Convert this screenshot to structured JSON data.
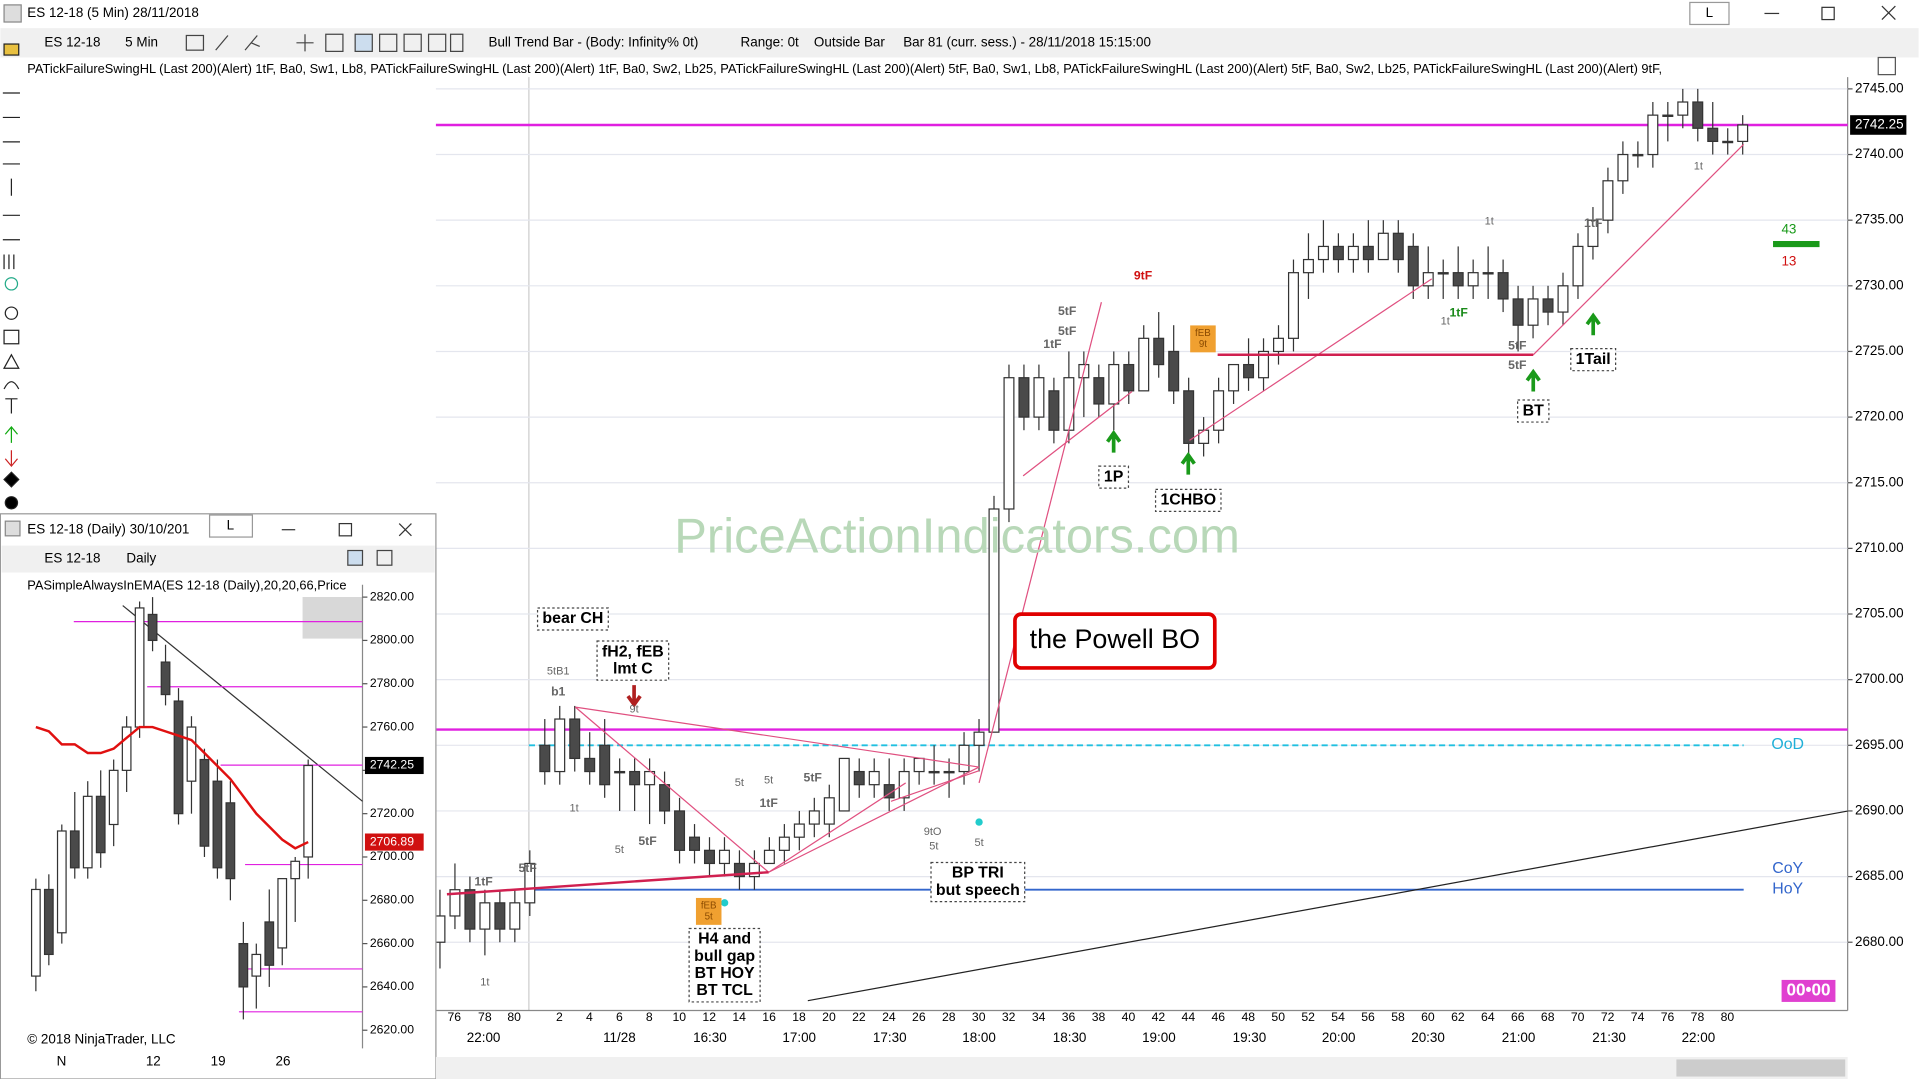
{
  "window": {
    "title": "ES 12-18 (5 Min)  28/11/2018",
    "mode": "L"
  },
  "toolbar": {
    "instrument": "ES 12-18",
    "interval": "5 Min",
    "status": "Bull Trend Bar - (Body: Infinity%  0t)",
    "range": "Range: 0t",
    "bar_type": "Outside Bar",
    "bar_info": "Bar 81 (curr. sess.) - 28/11/2018 15:15:00"
  },
  "indicator_label": "PATickFailureSwingHL (Last 200)(Alert) 1tF,  Ba0,  Sw1,  Lb8,  PATickFailureSwingHL (Last 200)(Alert) 1tF,  Ba0,  Sw2,  Lb25,  PATickFailureSwingHL (Last 200)(Alert) 5tF,  Ba0,  Sw1,  Lb8,  PATickFailureSwingHL (Last 200)(Alert) 5tF,  Ba0,  Sw2,  Lb25,  PATickFailureSwingHL (Last 200)(Alert) 9tF,",
  "chart_data": {
    "type": "candlestick",
    "ylim": [
      2674.8,
      2745.9
    ],
    "yticks": [
      {
        "value": 2745,
        "label": "2745.00"
      },
      {
        "value": 2740,
        "label": "2740.00"
      },
      {
        "value": 2735,
        "label": "2735.00"
      },
      {
        "value": 2730,
        "label": "2730.00"
      },
      {
        "value": 2725,
        "label": "2725.00"
      },
      {
        "value": 2720,
        "label": "2720.00"
      },
      {
        "value": 2715,
        "label": "2715.00"
      },
      {
        "value": 2710,
        "label": "2710.00"
      },
      {
        "value": 2705,
        "label": "2705.00"
      },
      {
        "value": 2700,
        "label": "2700.00"
      },
      {
        "value": 2695,
        "label": "2695.00"
      },
      {
        "value": 2690,
        "label": "2690.00"
      },
      {
        "value": 2685,
        "label": "2685.00"
      },
      {
        "value": 2680,
        "label": "2680.00"
      }
    ],
    "last_price": {
      "value": 2742.25,
      "label": "2742.25"
    },
    "levels": [
      {
        "value": 2742.25,
        "color": "#e020e0"
      },
      {
        "value": 2696.2,
        "color": "#e020e0"
      },
      {
        "value": 2695,
        "color": "#20c0e0"
      },
      {
        "value": 2684,
        "color": "#3366cc"
      }
    ],
    "bar_labels": [
      "76",
      "78",
      "80",
      "2",
      "4",
      "6",
      "8",
      "10",
      "12",
      "14",
      "16",
      "18",
      "20",
      "22",
      "24",
      "26",
      "28",
      "30",
      "32",
      "34",
      "36",
      "38",
      "40",
      "42",
      "44",
      "46",
      "48",
      "50",
      "52",
      "54",
      "56",
      "58",
      "60",
      "62",
      "64",
      "66",
      "68",
      "70",
      "72",
      "74",
      "76",
      "78",
      "80"
    ],
    "time_labels": [
      "22:00",
      "11/28",
      "16:30",
      "17:00",
      "17:30",
      "18:00",
      "18:30",
      "19:00",
      "19:30",
      "20:00",
      "20:30",
      "21:00",
      "21:30",
      "22:00"
    ],
    "prior_candles": [
      [
        2680,
        2684,
        2678,
        2682
      ],
      [
        2682,
        2686,
        2681,
        2684
      ],
      [
        2684,
        2685,
        2680,
        2681
      ],
      [
        2681,
        2684,
        2679,
        2683
      ],
      [
        2683,
        2684,
        2680,
        2681
      ],
      [
        2681,
        2684,
        2680,
        2683
      ],
      [
        2683,
        2687,
        2682,
        2686
      ]
    ],
    "candles": [
      [
        2695,
        2697,
        2692,
        2693
      ],
      [
        2693,
        2698,
        2692,
        2697
      ],
      [
        2697,
        2698,
        2693,
        2694
      ],
      [
        2694,
        2696,
        2692,
        2693
      ],
      [
        2695,
        2697,
        2691,
        2692
      ],
      [
        2693,
        2694,
        2690,
        2693
      ],
      [
        2693,
        2694,
        2690,
        2692
      ],
      [
        2692,
        2694,
        2689,
        2693
      ],
      [
        2692,
        2693,
        2689,
        2690
      ],
      [
        2690,
        2691,
        2686,
        2687
      ],
      [
        2688,
        2689,
        2686,
        2687
      ],
      [
        2687,
        2688,
        2685,
        2686
      ],
      [
        2686,
        2688,
        2685,
        2687
      ],
      [
        2686,
        2687,
        2684,
        2685
      ],
      [
        2685,
        2687,
        2684,
        2686
      ],
      [
        2686,
        2688,
        2686,
        2687
      ],
      [
        2687,
        2689,
        2686,
        2688
      ],
      [
        2688,
        2690,
        2687,
        2689
      ],
      [
        2689,
        2691,
        2688,
        2690
      ],
      [
        2689,
        2692,
        2688,
        2691
      ],
      [
        2690,
        2694,
        2690,
        2694
      ],
      [
        2693,
        2694,
        2691,
        2692
      ],
      [
        2692,
        2694,
        2691,
        2693
      ],
      [
        2692,
        2694,
        2690,
        2691
      ],
      [
        2691,
        2694,
        2690,
        2693
      ],
      [
        2693,
        2694,
        2692,
        2694
      ],
      [
        2693,
        2695,
        2692,
        2693
      ],
      [
        2693,
        2694,
        2691,
        2693
      ],
      [
        2693,
        2696,
        2692,
        2695
      ],
      [
        2695,
        2697,
        2693,
        2696
      ],
      [
        2696,
        2714,
        2696,
        2713
      ],
      [
        2713,
        2724,
        2712,
        2723
      ],
      [
        2723,
        2724,
        2719,
        2720
      ],
      [
        2720,
        2724,
        2719,
        2723
      ],
      [
        2722,
        2723,
        2718,
        2719
      ],
      [
        2719,
        2725,
        2718,
        2723
      ],
      [
        2723,
        2725,
        2720,
        2724
      ],
      [
        2723,
        2724,
        2720,
        2721
      ],
      [
        2721,
        2725,
        2719,
        2724
      ],
      [
        2724,
        2725,
        2721,
        2722
      ],
      [
        2722,
        2727,
        2722,
        2726
      ],
      [
        2726,
        2728,
        2723,
        2724
      ],
      [
        2725,
        2727,
        2721,
        2722
      ],
      [
        2722,
        2723,
        2717,
        2718
      ],
      [
        2718,
        2720,
        2717,
        2719
      ],
      [
        2719,
        2723,
        2718,
        2722
      ],
      [
        2722,
        2724,
        2721,
        2724
      ],
      [
        2724,
        2726,
        2722,
        2723
      ],
      [
        2723,
        2726,
        2722,
        2725
      ],
      [
        2725,
        2727,
        2724,
        2726
      ],
      [
        2726,
        2732,
        2725,
        2731
      ],
      [
        2731,
        2734,
        2729,
        2732
      ],
      [
        2732,
        2735,
        2731,
        2733
      ],
      [
        2733,
        2734,
        2731,
        2732
      ],
      [
        2732,
        2734,
        2731,
        2733
      ],
      [
        2733,
        2735,
        2731,
        2732
      ],
      [
        2732,
        2735,
        2732,
        2734
      ],
      [
        2734,
        2735,
        2731,
        2732
      ],
      [
        2733,
        2734,
        2729,
        2730
      ],
      [
        2730,
        2733,
        2729,
        2731
      ],
      [
        2731,
        2732,
        2729,
        2731
      ],
      [
        2731,
        2733,
        2729,
        2730
      ],
      [
        2730,
        2732,
        2729,
        2731
      ],
      [
        2731,
        2733,
        2729,
        2731
      ],
      [
        2731,
        2732,
        2728,
        2729
      ],
      [
        2729,
        2730,
        2725,
        2727
      ],
      [
        2727,
        2730,
        2726,
        2729
      ],
      [
        2729,
        2730,
        2727,
        2728
      ],
      [
        2728,
        2731,
        2727,
        2730
      ],
      [
        2730,
        2734,
        2729,
        2733
      ],
      [
        2733,
        2736,
        2732,
        2735
      ],
      [
        2735,
        2739,
        2734,
        2738
      ],
      [
        2738,
        2741,
        2737,
        2740
      ],
      [
        2740,
        2741,
        2739,
        2740
      ],
      [
        2740,
        2744,
        2739,
        2743
      ],
      [
        2743,
        2744,
        2741,
        2743
      ],
      [
        2743,
        2745,
        2742,
        2744
      ],
      [
        2744,
        2745,
        2741,
        2742
      ],
      [
        2742,
        2744,
        2740,
        2741
      ],
      [
        2741,
        2742,
        2740,
        2741
      ],
      [
        2741,
        2743,
        2740,
        2742.25
      ]
    ]
  },
  "annotations": [
    "bear CH",
    [
      "fH2, fEB",
      "lmt C"
    ],
    "the Powell BO",
    [
      "BP TRI",
      "but speech"
    ],
    [
      "H4 and",
      "bull gap",
      "BT HOY",
      "BT TCL"
    ],
    "1P",
    "1CHBO",
    "BT",
    "1Tail",
    "9tF",
    "5tF",
    "5tF",
    "1tF",
    "1tF",
    "5tF",
    "5tF",
    "1tF",
    "5tF",
    "5t",
    "5t",
    "5t",
    "1t",
    "1t",
    "9tO",
    "5t",
    "5t",
    "5tB1",
    "b1",
    "9t",
    "1tF",
    "1t",
    "5tF",
    "5tF",
    "1tF",
    "1t",
    "1t",
    "PriceActionIndicators.com",
    "OoD",
    "CoY",
    "HoY",
    "43",
    "13",
    "00•00",
    [
      "fEB",
      "9t"
    ],
    [
      "fEB",
      "5t"
    ]
  ],
  "daily_chart": {
    "title": "ES 12-18 (Daily)  30/10/201",
    "mode": "L",
    "instrument": "ES 12-18",
    "interval": "Daily",
    "indicator": "PASimpleAlwaysInEMA(ES  12-18  (Daily),20,20,66,Price",
    "ylim": [
      2611.6,
      2825.7
    ],
    "yticks": [
      {
        "value": 2820,
        "label": "2820.00"
      },
      {
        "value": 2800,
        "label": "2800.00"
      },
      {
        "value": 2780,
        "label": "2780.00"
      },
      {
        "value": 2760,
        "label": "2760.00"
      },
      {
        "value": 2740,
        "label": "2740.00"
      },
      {
        "value": 2720,
        "label": "2720.00"
      },
      {
        "value": 2700,
        "label": "2700.00"
      },
      {
        "value": 2680,
        "label": "2680.00"
      },
      {
        "value": 2660,
        "label": "2660.00"
      },
      {
        "value": 2640,
        "label": "2640.00"
      },
      {
        "value": 2620,
        "label": "2620.00"
      }
    ],
    "last_price": {
      "value": 2742.25,
      "label": "2742.25"
    },
    "ema_price": {
      "value": 2706.89,
      "label": "2706.89"
    },
    "candles": [
      [
        2645,
        2690,
        2638,
        2685
      ],
      [
        2685,
        2692,
        2650,
        2655
      ],
      [
        2665,
        2715,
        2660,
        2712
      ],
      [
        2712,
        2730,
        2690,
        2695
      ],
      [
        2695,
        2735,
        2690,
        2728
      ],
      [
        2728,
        2740,
        2695,
        2702
      ],
      [
        2715,
        2745,
        2705,
        2740
      ],
      [
        2740,
        2765,
        2730,
        2760
      ],
      [
        2760,
        2818,
        2755,
        2815
      ],
      [
        2812,
        2820,
        2795,
        2800
      ],
      [
        2790,
        2798,
        2770,
        2775
      ],
      [
        2772,
        2778,
        2715,
        2720
      ],
      [
        2735,
        2765,
        2720,
        2760
      ],
      [
        2745,
        2750,
        2700,
        2705
      ],
      [
        2735,
        2745,
        2690,
        2695
      ],
      [
        2725,
        2735,
        2680,
        2690
      ],
      [
        2660,
        2670,
        2625,
        2640
      ],
      [
        2645,
        2660,
        2630,
        2655
      ],
      [
        2670,
        2685,
        2640,
        2650
      ],
      [
        2658,
        2690,
        2650,
        2690
      ],
      [
        2690,
        2700,
        2670,
        2698
      ],
      [
        2700,
        2745,
        2690,
        2742.25
      ]
    ],
    "ema": [
      2760,
      2758,
      2752,
      2752,
      2748,
      2748,
      2750,
      2755,
      2760,
      2760,
      2758,
      2756,
      2754,
      2748,
      2742,
      2736,
      2728,
      2720,
      2714,
      2708,
      2704,
      2706.89
    ],
    "levels": [
      2808.7,
      2778.6,
      2742.4,
      2696.5,
      2648.3,
      2628.5
    ],
    "xlabels": [
      "N",
      "12",
      "19",
      "26"
    ],
    "copyright": "© 2018 NinjaTrader, LLC"
  }
}
